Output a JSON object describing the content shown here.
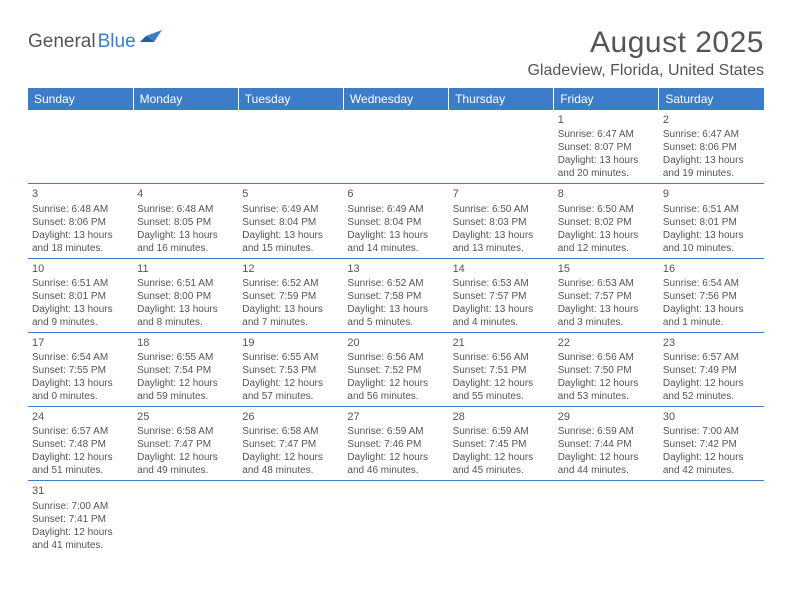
{
  "logo": {
    "part1": "General",
    "part2": "Blue"
  },
  "title": "August 2025",
  "location": "Gladeview, Florida, United States",
  "colors": {
    "header_bg": "#3d7cc9",
    "header_text": "#ffffff",
    "body_text": "#555555",
    "divider": "#3d7cc9",
    "page_bg": "#ffffff",
    "logo_blue": "#3d7cc9"
  },
  "weekdays": [
    "Sunday",
    "Monday",
    "Tuesday",
    "Wednesday",
    "Thursday",
    "Friday",
    "Saturday"
  ],
  "weeks": [
    [
      null,
      null,
      null,
      null,
      null,
      {
        "n": "1",
        "sr": "Sunrise: 6:47 AM",
        "ss": "Sunset: 8:07 PM",
        "d1": "Daylight: 13 hours",
        "d2": "and 20 minutes."
      },
      {
        "n": "2",
        "sr": "Sunrise: 6:47 AM",
        "ss": "Sunset: 8:06 PM",
        "d1": "Daylight: 13 hours",
        "d2": "and 19 minutes."
      }
    ],
    [
      {
        "n": "3",
        "sr": "Sunrise: 6:48 AM",
        "ss": "Sunset: 8:06 PM",
        "d1": "Daylight: 13 hours",
        "d2": "and 18 minutes."
      },
      {
        "n": "4",
        "sr": "Sunrise: 6:48 AM",
        "ss": "Sunset: 8:05 PM",
        "d1": "Daylight: 13 hours",
        "d2": "and 16 minutes."
      },
      {
        "n": "5",
        "sr": "Sunrise: 6:49 AM",
        "ss": "Sunset: 8:04 PM",
        "d1": "Daylight: 13 hours",
        "d2": "and 15 minutes."
      },
      {
        "n": "6",
        "sr": "Sunrise: 6:49 AM",
        "ss": "Sunset: 8:04 PM",
        "d1": "Daylight: 13 hours",
        "d2": "and 14 minutes."
      },
      {
        "n": "7",
        "sr": "Sunrise: 6:50 AM",
        "ss": "Sunset: 8:03 PM",
        "d1": "Daylight: 13 hours",
        "d2": "and 13 minutes."
      },
      {
        "n": "8",
        "sr": "Sunrise: 6:50 AM",
        "ss": "Sunset: 8:02 PM",
        "d1": "Daylight: 13 hours",
        "d2": "and 12 minutes."
      },
      {
        "n": "9",
        "sr": "Sunrise: 6:51 AM",
        "ss": "Sunset: 8:01 PM",
        "d1": "Daylight: 13 hours",
        "d2": "and 10 minutes."
      }
    ],
    [
      {
        "n": "10",
        "sr": "Sunrise: 6:51 AM",
        "ss": "Sunset: 8:01 PM",
        "d1": "Daylight: 13 hours",
        "d2": "and 9 minutes."
      },
      {
        "n": "11",
        "sr": "Sunrise: 6:51 AM",
        "ss": "Sunset: 8:00 PM",
        "d1": "Daylight: 13 hours",
        "d2": "and 8 minutes."
      },
      {
        "n": "12",
        "sr": "Sunrise: 6:52 AM",
        "ss": "Sunset: 7:59 PM",
        "d1": "Daylight: 13 hours",
        "d2": "and 7 minutes."
      },
      {
        "n": "13",
        "sr": "Sunrise: 6:52 AM",
        "ss": "Sunset: 7:58 PM",
        "d1": "Daylight: 13 hours",
        "d2": "and 5 minutes."
      },
      {
        "n": "14",
        "sr": "Sunrise: 6:53 AM",
        "ss": "Sunset: 7:57 PM",
        "d1": "Daylight: 13 hours",
        "d2": "and 4 minutes."
      },
      {
        "n": "15",
        "sr": "Sunrise: 6:53 AM",
        "ss": "Sunset: 7:57 PM",
        "d1": "Daylight: 13 hours",
        "d2": "and 3 minutes."
      },
      {
        "n": "16",
        "sr": "Sunrise: 6:54 AM",
        "ss": "Sunset: 7:56 PM",
        "d1": "Daylight: 13 hours",
        "d2": "and 1 minute."
      }
    ],
    [
      {
        "n": "17",
        "sr": "Sunrise: 6:54 AM",
        "ss": "Sunset: 7:55 PM",
        "d1": "Daylight: 13 hours",
        "d2": "and 0 minutes."
      },
      {
        "n": "18",
        "sr": "Sunrise: 6:55 AM",
        "ss": "Sunset: 7:54 PM",
        "d1": "Daylight: 12 hours",
        "d2": "and 59 minutes."
      },
      {
        "n": "19",
        "sr": "Sunrise: 6:55 AM",
        "ss": "Sunset: 7:53 PM",
        "d1": "Daylight: 12 hours",
        "d2": "and 57 minutes."
      },
      {
        "n": "20",
        "sr": "Sunrise: 6:56 AM",
        "ss": "Sunset: 7:52 PM",
        "d1": "Daylight: 12 hours",
        "d2": "and 56 minutes."
      },
      {
        "n": "21",
        "sr": "Sunrise: 6:56 AM",
        "ss": "Sunset: 7:51 PM",
        "d1": "Daylight: 12 hours",
        "d2": "and 55 minutes."
      },
      {
        "n": "22",
        "sr": "Sunrise: 6:56 AM",
        "ss": "Sunset: 7:50 PM",
        "d1": "Daylight: 12 hours",
        "d2": "and 53 minutes."
      },
      {
        "n": "23",
        "sr": "Sunrise: 6:57 AM",
        "ss": "Sunset: 7:49 PM",
        "d1": "Daylight: 12 hours",
        "d2": "and 52 minutes."
      }
    ],
    [
      {
        "n": "24",
        "sr": "Sunrise: 6:57 AM",
        "ss": "Sunset: 7:48 PM",
        "d1": "Daylight: 12 hours",
        "d2": "and 51 minutes."
      },
      {
        "n": "25",
        "sr": "Sunrise: 6:58 AM",
        "ss": "Sunset: 7:47 PM",
        "d1": "Daylight: 12 hours",
        "d2": "and 49 minutes."
      },
      {
        "n": "26",
        "sr": "Sunrise: 6:58 AM",
        "ss": "Sunset: 7:47 PM",
        "d1": "Daylight: 12 hours",
        "d2": "and 48 minutes."
      },
      {
        "n": "27",
        "sr": "Sunrise: 6:59 AM",
        "ss": "Sunset: 7:46 PM",
        "d1": "Daylight: 12 hours",
        "d2": "and 46 minutes."
      },
      {
        "n": "28",
        "sr": "Sunrise: 6:59 AM",
        "ss": "Sunset: 7:45 PM",
        "d1": "Daylight: 12 hours",
        "d2": "and 45 minutes."
      },
      {
        "n": "29",
        "sr": "Sunrise: 6:59 AM",
        "ss": "Sunset: 7:44 PM",
        "d1": "Daylight: 12 hours",
        "d2": "and 44 minutes."
      },
      {
        "n": "30",
        "sr": "Sunrise: 7:00 AM",
        "ss": "Sunset: 7:42 PM",
        "d1": "Daylight: 12 hours",
        "d2": "and 42 minutes."
      }
    ],
    [
      {
        "n": "31",
        "sr": "Sunrise: 7:00 AM",
        "ss": "Sunset: 7:41 PM",
        "d1": "Daylight: 12 hours",
        "d2": "and 41 minutes."
      },
      null,
      null,
      null,
      null,
      null,
      null
    ]
  ]
}
